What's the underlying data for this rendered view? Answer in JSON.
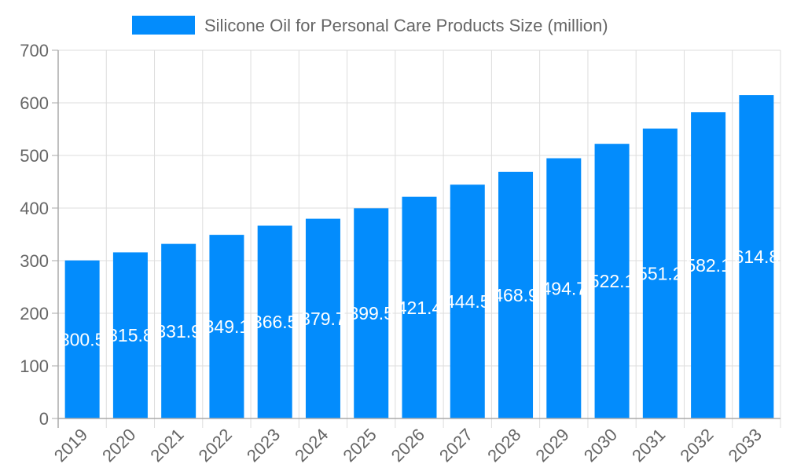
{
  "chart_data": {
    "type": "bar",
    "title": "",
    "xlabel": "",
    "ylabel": "",
    "legend": {
      "position": "top",
      "entries": [
        "Silicone Oil for Personal Care Products Size (million)"
      ]
    },
    "categories": [
      "2019",
      "2020",
      "2021",
      "2022",
      "2023",
      "2024",
      "2025",
      "2026",
      "2027",
      "2028",
      "2029",
      "2030",
      "2031",
      "2032",
      "2033"
    ],
    "series": [
      {
        "name": "Silicone Oil for Personal Care Products Size (million)",
        "values": [
          300.5,
          315.8,
          331.9,
          349.1,
          366.5,
          379.7,
          399.5,
          421.4,
          444.5,
          468.9,
          494.7,
          522.1,
          551.2,
          582.1,
          614.8
        ],
        "color": "#038cfc"
      }
    ],
    "ylim": [
      0,
      700
    ],
    "yticks": [
      0,
      100,
      200,
      300,
      400,
      500,
      600,
      700
    ],
    "grid": true,
    "data_labels": true
  }
}
